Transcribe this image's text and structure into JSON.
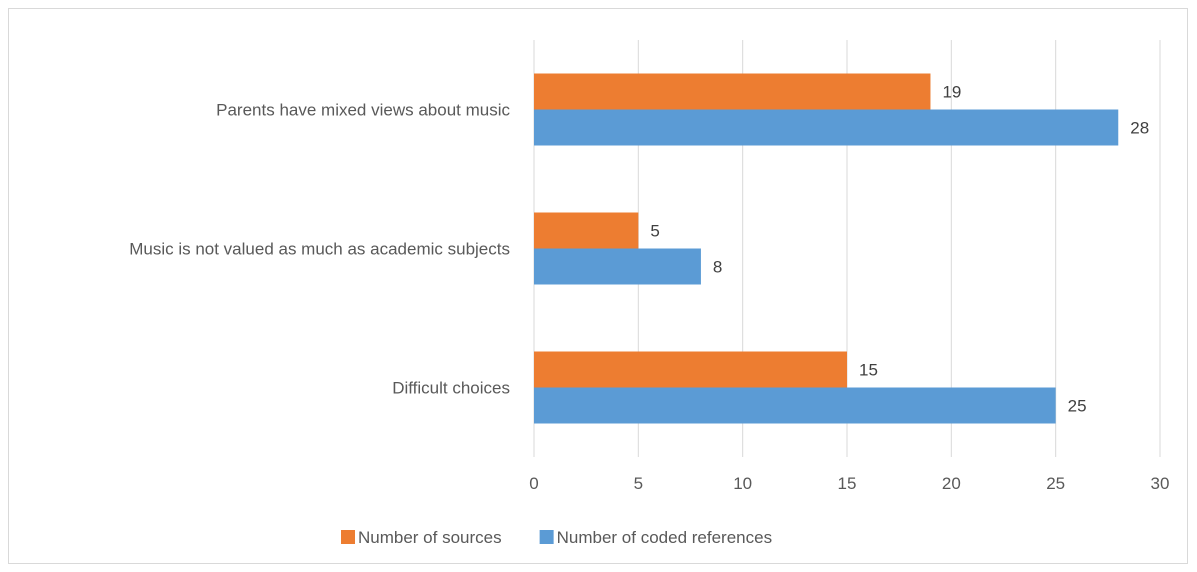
{
  "chart_data": {
    "type": "bar",
    "orientation": "horizontal",
    "categories": [
      "Parents have mixed views about music",
      "Music is not valued as much as academic subjects",
      "Difficult choices"
    ],
    "series": [
      {
        "name": "Number of sources",
        "color": "#ED7D31",
        "values": [
          19,
          5,
          15
        ]
      },
      {
        "name": "Number of coded references",
        "color": "#5B9BD5",
        "values": [
          28,
          8,
          25
        ]
      }
    ],
    "xlim": [
      0,
      30
    ],
    "xticks": [
      "0",
      "5",
      "10",
      "15",
      "20",
      "25",
      "30"
    ],
    "grid": true,
    "legend": "bottom",
    "data_labels": true
  }
}
